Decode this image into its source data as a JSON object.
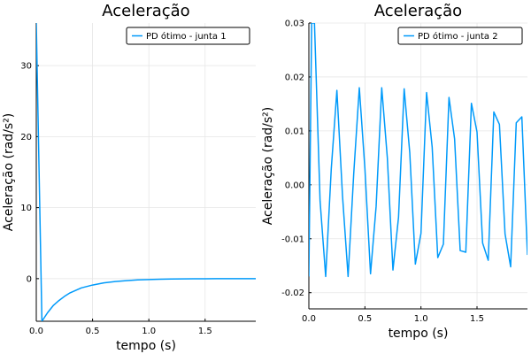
{
  "chart_data": [
    {
      "type": "line",
      "title": "Aceleração",
      "xlabel": "tempo (s)",
      "ylabel": "Aceleração (rad/s²)",
      "xlim": [
        0,
        1.95
      ],
      "ylim": [
        -6,
        36
      ],
      "xticks": [
        0.0,
        0.5,
        1.0,
        1.5
      ],
      "xtick_labels": [
        "0.0",
        "0.5",
        "1.0",
        "1.5"
      ],
      "yticks": [
        0,
        10,
        20,
        30
      ],
      "ytick_labels": [
        "0",
        "10",
        "20",
        "30"
      ],
      "grid": true,
      "legend_position": "top-right",
      "series": [
        {
          "name": "PD ótimo - junta 1",
          "color": "#009AFA",
          "x": [
            0.0,
            0.05,
            0.1,
            0.15,
            0.2,
            0.25,
            0.3,
            0.4,
            0.5,
            0.6,
            0.7,
            0.8,
            0.9,
            1.0,
            1.1,
            1.2,
            1.3,
            1.4,
            1.5,
            1.6,
            1.7,
            1.8,
            1.95
          ],
          "y": [
            36.0,
            -6.0,
            -4.8,
            -3.8,
            -3.1,
            -2.5,
            -2.0,
            -1.3,
            -0.9,
            -0.6,
            -0.4,
            -0.28,
            -0.18,
            -0.12,
            -0.08,
            -0.05,
            -0.03,
            -0.02,
            -0.01,
            -0.006,
            -0.004,
            -0.002,
            -0.001
          ]
        }
      ]
    },
    {
      "type": "line",
      "title": "Aceleração",
      "xlabel": "tempo (s)",
      "ylabel": "Aceleração (rad/s²)",
      "xlim": [
        0,
        1.95
      ],
      "ylim": [
        -0.023,
        0.03
      ],
      "xticks": [
        0.0,
        0.5,
        1.0,
        1.5
      ],
      "xtick_labels": [
        "0.0",
        "0.5",
        "1.0",
        "1.5"
      ],
      "yticks": [
        -0.02,
        -0.01,
        0.0,
        0.01,
        0.02,
        0.03
      ],
      "ytick_labels": [
        "-0.02",
        "-0.01",
        "0.00",
        "0.01",
        "0.02",
        "0.03"
      ],
      "grid": true,
      "legend_position": "top-right",
      "series": [
        {
          "name": "PD ótimo - junta 2",
          "color": "#009AFA",
          "x": [
            0.0,
            0.025,
            0.05,
            0.1,
            0.15,
            0.2,
            0.25,
            0.3,
            0.35,
            0.4,
            0.45,
            0.5,
            0.55,
            0.6,
            0.65,
            0.7,
            0.75,
            0.8,
            0.85,
            0.9,
            0.95,
            1.0,
            1.05,
            1.1,
            1.15,
            1.2,
            1.25,
            1.3,
            1.35,
            1.4,
            1.45,
            1.5,
            1.55,
            1.6,
            1.65,
            1.7,
            1.75,
            1.8,
            1.85,
            1.9,
            1.95
          ],
          "y": [
            -0.017,
            0.03,
            0.03,
            -0.003,
            -0.017,
            0.003,
            0.0175,
            -0.002,
            -0.017,
            0.002,
            0.018,
            0.003,
            -0.0165,
            -0.004,
            0.018,
            0.005,
            -0.0158,
            -0.006,
            0.0178,
            0.006,
            -0.0147,
            -0.009,
            0.0171,
            0.007,
            -0.0135,
            -0.011,
            0.0162,
            0.0085,
            -0.0122,
            -0.0125,
            0.0151,
            0.0098,
            -0.0108,
            -0.014,
            0.0135,
            0.0112,
            -0.0091,
            -0.0152,
            0.0115,
            0.0126,
            -0.013
          ]
        }
      ]
    }
  ]
}
